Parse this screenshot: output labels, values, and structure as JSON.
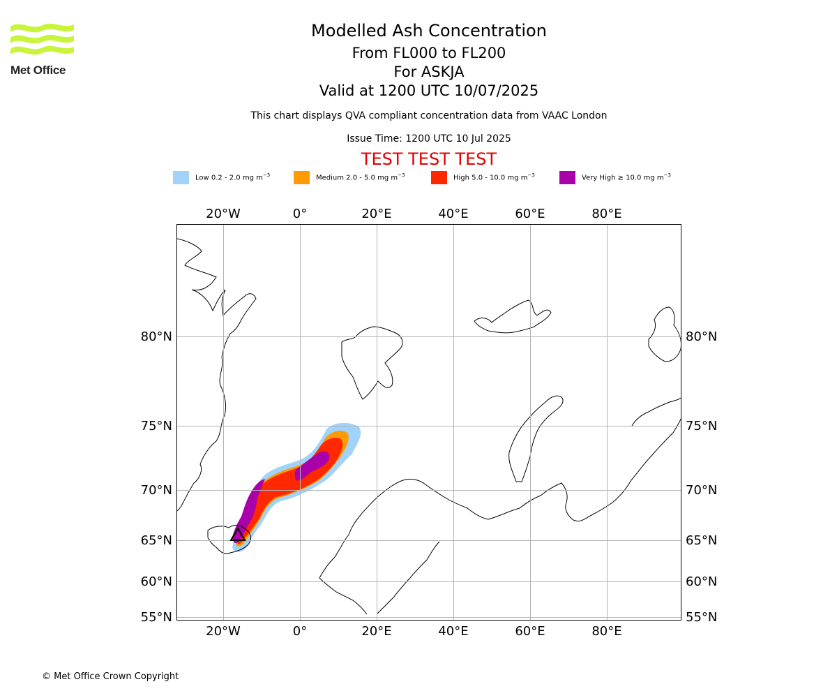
{
  "header": {
    "title": "Modelled Ash Concentration",
    "subtitle_levels": "From FL000 to FL200",
    "subtitle_volcano": "For ASKJA",
    "subtitle_valid": "Valid at 1200 UTC 10/07/2025",
    "compliance_note": "This chart displays QVA compliant concentration data from VAAC London",
    "issue_time": "Issue Time: 1200 UTC 10 Jul 2025",
    "test_banner": "TEST TEST TEST"
  },
  "logo": {
    "text": "Met Office",
    "color": "#c8f53c"
  },
  "legend": [
    {
      "name": "Low",
      "label": "Low 0.2 - 2.0 mg m",
      "color": "#a0d2fa"
    },
    {
      "name": "Medium",
      "label": "Medium 2.0 - 5.0 mg m",
      "color": "#ff9a00"
    },
    {
      "name": "High",
      "label": "High 5.0 - 10.0 mg m",
      "color": "#ff2800"
    },
    {
      "name": "Very High",
      "label": "Very High  ≥  10.0 mg m",
      "color": "#aa00aa"
    }
  ],
  "legend_unit_exponent": "−3",
  "map": {
    "lon_ticks": [
      "20°W",
      "0°",
      "20°E",
      "40°E",
      "60°E",
      "80°E"
    ],
    "lat_ticks": [
      "80°N",
      "75°N",
      "70°N",
      "65°N",
      "60°N",
      "55°N"
    ],
    "volcano_symbol": "triangle"
  },
  "footer": {
    "copyright": "© Met Office Crown Copyright"
  }
}
